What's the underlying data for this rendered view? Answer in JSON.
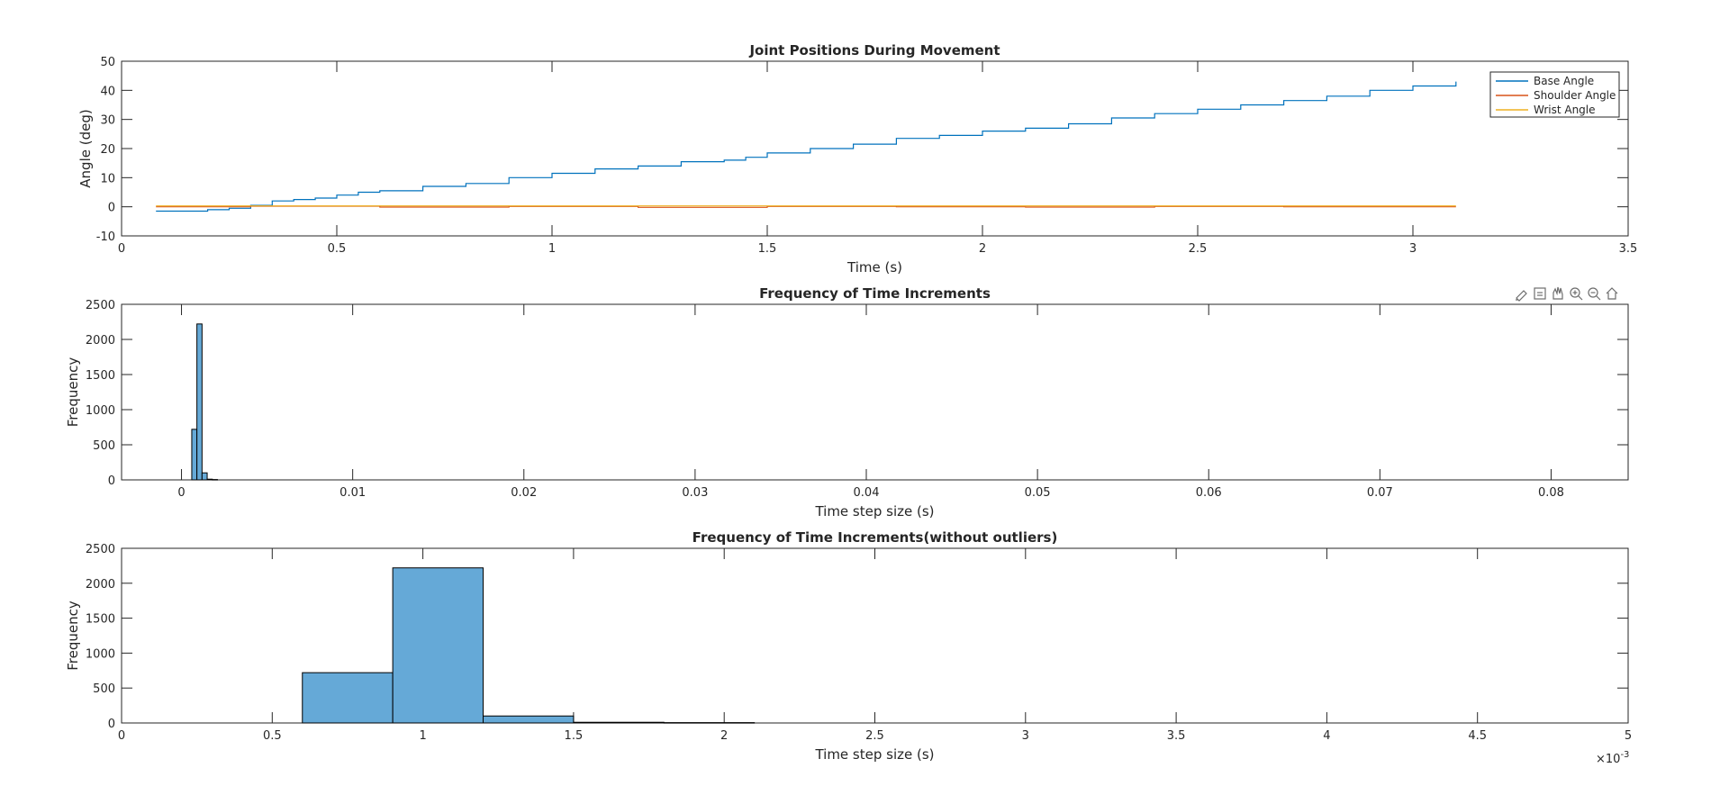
{
  "figure": {
    "toolbar": {
      "icons": [
        "brush-icon",
        "data-tips-icon",
        "pan-icon",
        "zoom-in-icon",
        "zoom-out-icon",
        "home-icon"
      ]
    }
  },
  "chart_data": [
    {
      "type": "line",
      "title": "Joint Positions During Movement",
      "xlabel": "Time (s)",
      "ylabel": "Angle (deg)",
      "xlim": [
        0,
        3.5
      ],
      "ylim": [
        -10,
        50
      ],
      "xticks": [
        0,
        0.5,
        1,
        1.5,
        2,
        2.5,
        3,
        3.5
      ],
      "xtick_labels": [
        "0",
        "0.5",
        "1",
        "1.5",
        "2",
        "2.5",
        "3",
        "3.5"
      ],
      "yticks": [
        -10,
        0,
        10,
        20,
        30,
        40,
        50
      ],
      "ytick_labels": [
        "-10",
        "0",
        "10",
        "20",
        "30",
        "40",
        "50"
      ],
      "grid": false,
      "legend_position": "top-right",
      "series": [
        {
          "name": "Base Angle",
          "color": "#0072BD",
          "x": [
            0.08,
            0.15,
            0.2,
            0.25,
            0.3,
            0.35,
            0.4,
            0.45,
            0.5,
            0.55,
            0.6,
            0.7,
            0.8,
            0.9,
            1.0,
            1.1,
            1.2,
            1.3,
            1.4,
            1.45,
            1.5,
            1.6,
            1.7,
            1.8,
            1.9,
            2.0,
            2.1,
            2.2,
            2.3,
            2.4,
            2.5,
            2.6,
            2.7,
            2.8,
            2.9,
            3.0,
            3.1
          ],
          "y": [
            -1.5,
            -1.5,
            -1.0,
            -0.5,
            0.5,
            2.0,
            2.5,
            3.0,
            4.0,
            5.0,
            5.5,
            7.0,
            8.0,
            10.0,
            11.5,
            13.0,
            14.0,
            15.5,
            16.0,
            17.0,
            18.5,
            20.0,
            21.5,
            23.5,
            24.5,
            26.0,
            27.0,
            28.5,
            30.5,
            32.0,
            33.5,
            35.0,
            36.5,
            38.0,
            40.0,
            41.5,
            43.0
          ]
        },
        {
          "name": "Shoulder Angle",
          "color": "#D95319",
          "x": [
            0.08,
            0.3,
            0.6,
            0.9,
            1.2,
            1.5,
            1.8,
            2.1,
            2.4,
            2.7,
            3.1
          ],
          "y": [
            0.0,
            0.2,
            -0.1,
            0.1,
            -0.2,
            0.1,
            0.0,
            -0.1,
            0.1,
            0.0,
            0.0
          ]
        },
        {
          "name": "Wrist Angle",
          "color": "#EDB120",
          "x": [
            0.08,
            3.1
          ],
          "y": [
            0.3,
            0.3
          ]
        }
      ]
    },
    {
      "type": "bar",
      "title": "Frequency of Time Increments",
      "xlabel": "Time step size (s)",
      "ylabel": "Frequency",
      "xlim": [
        -0.0035,
        0.0845
      ],
      "ylim": [
        0,
        2500
      ],
      "xticks": [
        0,
        0.01,
        0.02,
        0.03,
        0.04,
        0.05,
        0.06,
        0.07,
        0.08
      ],
      "xtick_labels": [
        "0",
        "0.01",
        "0.02",
        "0.03",
        "0.04",
        "0.05",
        "0.06",
        "0.07",
        "0.08"
      ],
      "yticks": [
        0,
        500,
        1000,
        1500,
        2000,
        2500
      ],
      "ytick_labels": [
        "0",
        "500",
        "1000",
        "1500",
        "2000",
        "2500"
      ],
      "grid": false,
      "bin_edges": [
        0.0006,
        0.0009,
        0.0012,
        0.0015,
        0.0018,
        0.0021
      ],
      "values": [
        720,
        2220,
        100,
        10,
        5
      ]
    },
    {
      "type": "bar",
      "title": "Frequency of Time Increments(without outliers)",
      "xlabel": "Time step size (s)",
      "ylabel": "Frequency",
      "xlim": [
        0,
        0.005
      ],
      "ylim": [
        0,
        2500
      ],
      "xticks": [
        0,
        0.0005,
        0.001,
        0.0015,
        0.002,
        0.0025,
        0.003,
        0.0035,
        0.004,
        0.0045,
        0.005
      ],
      "xtick_labels": [
        "0",
        "0.5",
        "1",
        "1.5",
        "2",
        "2.5",
        "3",
        "3.5",
        "4",
        "4.5",
        "5"
      ],
      "x_exponent_label": "×10",
      "x_exponent": "-3",
      "yticks": [
        0,
        500,
        1000,
        1500,
        2000,
        2500
      ],
      "ytick_labels": [
        "0",
        "500",
        "1000",
        "1500",
        "2000",
        "2500"
      ],
      "grid": false,
      "bin_edges": [
        0.0006,
        0.0009,
        0.0012,
        0.0015,
        0.0018,
        0.0021
      ],
      "values": [
        720,
        2220,
        100,
        10,
        5
      ]
    }
  ]
}
